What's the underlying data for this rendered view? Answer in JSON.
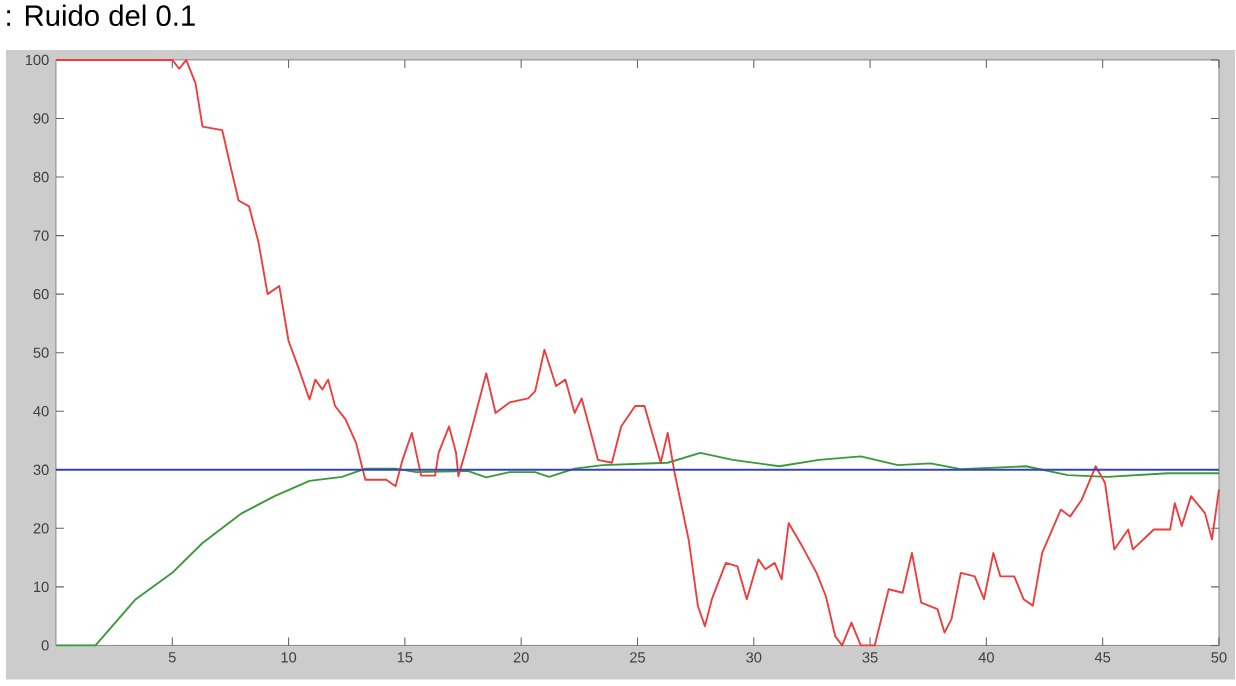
{
  "chart_data": {
    "type": "line",
    "title": ": Ruido del 0.1",
    "xlim": [
      0,
      50
    ],
    "ylim": [
      0,
      100
    ],
    "xticks": [
      5,
      10,
      15,
      20,
      25,
      30,
      35,
      40,
      45,
      50
    ],
    "yticks": [
      0,
      10,
      20,
      30,
      40,
      50,
      60,
      70,
      80,
      90,
      100
    ],
    "series": [
      {
        "color": "#3a9a3a",
        "x": [
          0,
          1.7,
          3.4,
          5,
          6.3,
          8,
          9.4,
          10.9,
          12.3,
          13.3,
          14.6,
          15.5,
          17.7,
          18.5,
          19.5,
          20.6,
          21.2,
          22.3,
          23.5,
          26.3,
          27.7,
          29.1,
          31.1,
          32.8,
          34.6,
          36.2,
          37.6,
          38.9,
          41.7,
          43.5,
          45.2,
          47.8,
          50
        ],
        "values": [
          0,
          0,
          7.8,
          12.4,
          17.5,
          22.6,
          25.5,
          28.1,
          28.8,
          30.2,
          30.2,
          29.6,
          29.8,
          28.7,
          29.6,
          29.6,
          28.8,
          30.2,
          30.8,
          31.2,
          32.9,
          31.7,
          30.6,
          31.7,
          32.3,
          30.8,
          31.1,
          30.1,
          30.6,
          29.1,
          28.8,
          29.4,
          29.4
        ]
      },
      {
        "color": "#f03c3c",
        "x": [
          0,
          5.0,
          5.3,
          5.6,
          6.0,
          6.3,
          7.15,
          7.4,
          7.85,
          8.3,
          8.7,
          9.1,
          9.6,
          10.0,
          10.4,
          10.9,
          11.15,
          11.45,
          11.7,
          12.0,
          12.45,
          12.9,
          13.3,
          14.2,
          14.6,
          14.9,
          15.3,
          15.7,
          16.3,
          16.45,
          16.9,
          17.2,
          17.3,
          17.6,
          17.9,
          18.5,
          18.9,
          19.5,
          20.3,
          20.6,
          21.0,
          21.5,
          21.9,
          22.3,
          22.6,
          23.0,
          23.3,
          23.9,
          24.3,
          24.9,
          25.3,
          25.8,
          26.0,
          26.3,
          26.6,
          27.2,
          27.6,
          27.9,
          28.2,
          28.8,
          29.3,
          29.7,
          30.2,
          30.5,
          30.9,
          31.2,
          31.5,
          32.1,
          32.7,
          33.1,
          33.5,
          33.8,
          34.2,
          34.6,
          35.2,
          35.8,
          36.4,
          36.8,
          37.2,
          37.9,
          38.2,
          38.5,
          38.9,
          39.5,
          39.9,
          40.3,
          40.6,
          41.2,
          41.6,
          42.0,
          42.4,
          43.2,
          43.6,
          44.1,
          44.7,
          45.1,
          45.5,
          46.1,
          46.3,
          47.2,
          47.9,
          48.1,
          48.4,
          48.8,
          49.4,
          49.7,
          50
        ],
        "values": [
          100,
          100,
          98.5,
          100,
          96,
          88.6,
          88,
          83.6,
          76,
          75,
          69,
          60,
          61.4,
          52,
          47.7,
          42,
          45.4,
          43.7,
          45.4,
          40.9,
          38.6,
          34.6,
          28.3,
          28.3,
          27.2,
          31.7,
          36.3,
          29,
          29,
          32.9,
          37.4,
          32.9,
          28.9,
          33,
          37.4,
          46.5,
          39.7,
          41.5,
          42.2,
          43.4,
          50.5,
          44.3,
          45.4,
          39.7,
          42.2,
          36.3,
          31.7,
          31.2,
          37.4,
          40.9,
          40.9,
          34,
          31.2,
          36.3,
          29.4,
          18.1,
          6.7,
          3.3,
          7.9,
          14.1,
          13.5,
          7.9,
          14.7,
          13,
          14.1,
          11.3,
          20.9,
          16.8,
          12.4,
          8.4,
          1.6,
          0,
          3.9,
          0,
          0,
          9.6,
          9,
          15.8,
          7.3,
          6.2,
          2.2,
          4.5,
          12.4,
          11.8,
          7.9,
          15.8,
          11.8,
          11.8,
          7.9,
          6.8,
          15.8,
          23.2,
          22,
          24.9,
          30.6,
          27.8,
          16.4,
          19.8,
          16.4,
          19.8,
          19.8,
          24.3,
          20.4,
          25.5,
          22.6,
          18.1,
          26.6
        ]
      },
      {
        "color": "#3344bb",
        "x": [
          0,
          50
        ],
        "values": [
          30,
          30
        ]
      }
    ]
  }
}
